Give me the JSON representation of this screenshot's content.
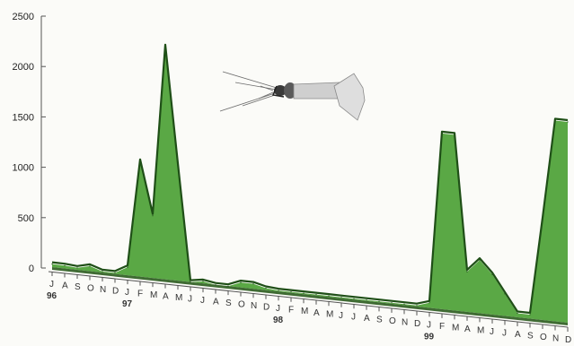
{
  "chart_data": {
    "type": "area",
    "title": "",
    "xlabel": "",
    "ylabel": "",
    "ylim": [
      0,
      2500
    ],
    "yticks": [
      "0",
      "500",
      "1000",
      "1500",
      "2000",
      "2500"
    ],
    "grid": false,
    "legend": "none",
    "colors": {
      "fill": "#5aa845",
      "top": "#1f4f17",
      "base": "#3f6b33",
      "axis": "#555555"
    },
    "x": [
      "J",
      "A",
      "S",
      "O",
      "N",
      "D",
      "J",
      "F",
      "M",
      "A",
      "M",
      "J",
      "J",
      "A",
      "S",
      "O",
      "N",
      "D",
      "J",
      "F",
      "M",
      "A",
      "M",
      "J",
      "J",
      "A",
      "S",
      "O",
      "N",
      "D",
      "J",
      "F",
      "M",
      "A",
      "M",
      "J",
      "J",
      "A",
      "S",
      "O",
      "N",
      "D"
    ],
    "year_labels": [
      {
        "index": 0,
        "label": "96"
      },
      {
        "index": 6,
        "label": "97"
      },
      {
        "index": 18,
        "label": "98"
      },
      {
        "index": 30,
        "label": "99"
      }
    ],
    "series": [
      {
        "values": [
          30,
          30,
          20,
          50,
          10,
          10,
          80,
          1150,
          620,
          2320,
          1150,
          0,
          20,
          0,
          0,
          50,
          50,
          20,
          10,
          10,
          10,
          10,
          10,
          10,
          10,
          10,
          10,
          10,
          10,
          10,
          50,
          1750,
          1750,
          400,
          530,
          400,
          220,
          40,
          40,
          1000,
          2000,
          2000
        ]
      }
    ],
    "image_icons": [
      "squid-image"
    ]
  }
}
